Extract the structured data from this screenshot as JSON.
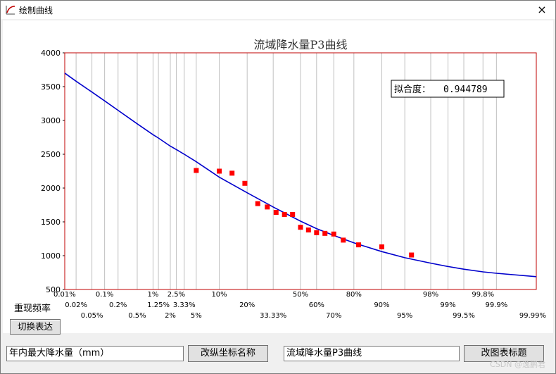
{
  "window": {
    "title": "绘制曲线",
    "close_glyph": "×"
  },
  "chart_data": {
    "type": "line",
    "title": "流域降水量P3曲线",
    "ylim": [
      500,
      4000
    ],
    "y_ticks": [
      "4000",
      "3500",
      "3000",
      "2500",
      "2000",
      "1500",
      "1000",
      "500"
    ],
    "y_tick_values": [
      4000,
      3500,
      3000,
      2500,
      2000,
      1500,
      1000,
      500
    ],
    "x_scale": "probability (normal)",
    "x_tick_rows": [
      [
        "0.01%",
        "0.1%",
        "1%",
        "2.5%",
        "10%",
        "50%",
        "80%",
        "98%",
        "99.8%"
      ],
      [
        "0.02%",
        "0.2%",
        "1.25%",
        "3.33%",
        "20%",
        "60%",
        "90%",
        "99%",
        "99.9%"
      ],
      [
        "0.05%",
        "0.5%",
        "2%",
        "5%",
        "33.33%",
        "70%",
        "95%",
        "99.5%",
        "99.99%"
      ]
    ],
    "x_tick_values": [
      [
        0.01,
        0.1,
        1,
        2.5,
        10,
        50,
        80,
        98,
        99.8
      ],
      [
        0.02,
        0.2,
        1.25,
        3.33,
        20,
        60,
        90,
        99,
        99.9
      ],
      [
        0.05,
        0.5,
        2,
        5,
        33.33,
        70,
        95,
        99.5,
        99.99
      ]
    ],
    "fit_label": "拟合度：",
    "fit_value": "0.944789",
    "curve": {
      "x": [
        0.01,
        0.02,
        0.05,
        0.1,
        0.2,
        0.5,
        1,
        1.25,
        2,
        2.5,
        3.33,
        5,
        10,
        20,
        33.33,
        50,
        60,
        70,
        80,
        90,
        95,
        98,
        99,
        99.5,
        99.8,
        99.9,
        99.99
      ],
      "y": [
        3700,
        3580,
        3420,
        3290,
        3150,
        2950,
        2790,
        2740,
        2620,
        2570,
        2500,
        2390,
        2160,
        1930,
        1720,
        1510,
        1400,
        1300,
        1190,
        1060,
        970,
        890,
        840,
        800,
        760,
        740,
        690
      ]
    },
    "points": {
      "x": [
        5,
        10,
        14,
        19,
        25,
        30,
        35,
        40,
        45,
        50,
        55,
        60,
        65,
        70,
        75,
        82,
        90,
        96
      ],
      "y": [
        2260,
        2250,
        2220,
        2070,
        1770,
        1720,
        1640,
        1610,
        1610,
        1420,
        1380,
        1340,
        1330,
        1320,
        1230,
        1160,
        1130,
        1010
      ]
    },
    "colors": {
      "curve": "#0000cc",
      "points": "#ff0000",
      "frame": "#c00000",
      "grid": "#c0c0c0"
    }
  },
  "controls": {
    "row_label": "重现频率",
    "toggle_label": "切换表达",
    "y_name_value": "年内最大降水量（mm）",
    "rename_axis_label": "改纵坐标名称",
    "title_value": "流域降水量P3曲线",
    "rename_title_label": "改图表标题"
  },
  "watermark": "CSDN @逸鹏君"
}
